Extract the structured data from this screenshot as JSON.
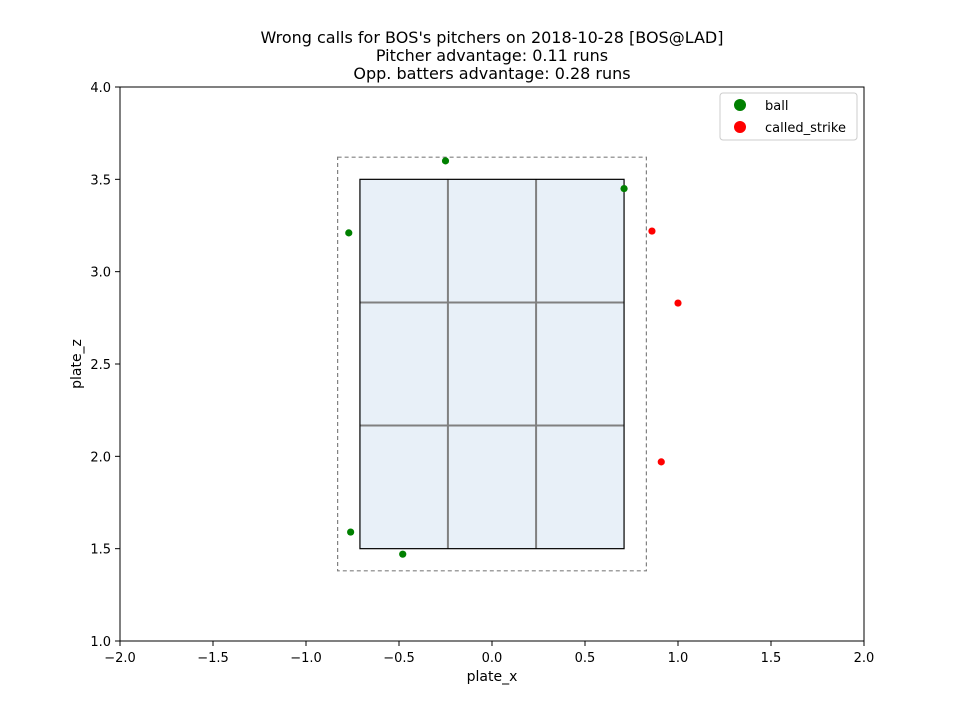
{
  "chart_data": {
    "type": "scatter",
    "title_lines": [
      "Wrong calls for BOS's pitchers on 2018-10-28 [BOS@LAD]",
      "Pitcher advantage: 0.11 runs",
      "Opp. batters advantage: 0.28 runs"
    ],
    "xlabel": "plate_x",
    "ylabel": "plate_z",
    "xlim": [
      -2.0,
      2.0
    ],
    "ylim": [
      1.0,
      4.0
    ],
    "xticks": [
      "-2.0",
      "-1.5",
      "-1.0",
      "-0.5",
      "0.0",
      "0.5",
      "1.0",
      "1.5",
      "2.0"
    ],
    "yticks": [
      "1.0",
      "1.5",
      "2.0",
      "2.5",
      "3.0",
      "3.5",
      "4.0"
    ],
    "xtick_values": [
      -2.0,
      -1.5,
      -1.0,
      -0.5,
      0.0,
      0.5,
      1.0,
      1.5,
      2.0
    ],
    "ytick_values": [
      1.0,
      1.5,
      2.0,
      2.5,
      3.0,
      3.5,
      4.0
    ],
    "grid": false,
    "legend_position": "top-right",
    "strike_zone": {
      "x": [
        -0.71,
        0.71
      ],
      "z": [
        1.5,
        3.5
      ],
      "grid_x": [
        -0.237,
        0.237
      ],
      "grid_z": [
        2.167,
        2.833
      ]
    },
    "buffer_zone": {
      "x": [
        -0.83,
        0.83
      ],
      "z": [
        1.38,
        3.62
      ]
    },
    "series": [
      {
        "name": "ball",
        "color": "#008000",
        "points": [
          {
            "x": -0.25,
            "y": 3.6
          },
          {
            "x": 0.71,
            "y": 3.45
          },
          {
            "x": -0.77,
            "y": 3.21
          },
          {
            "x": -0.76,
            "y": 1.59
          },
          {
            "x": -0.48,
            "y": 1.47
          }
        ]
      },
      {
        "name": "called_strike",
        "color": "#ff0000",
        "points": [
          {
            "x": 0.86,
            "y": 3.22
          },
          {
            "x": 1.0,
            "y": 2.83
          },
          {
            "x": 0.91,
            "y": 1.97
          }
        ]
      }
    ],
    "colors": {
      "zone_fill": "#e8f0f8",
      "zone_grid": "#808080",
      "buffer_stroke": "#808080"
    }
  }
}
